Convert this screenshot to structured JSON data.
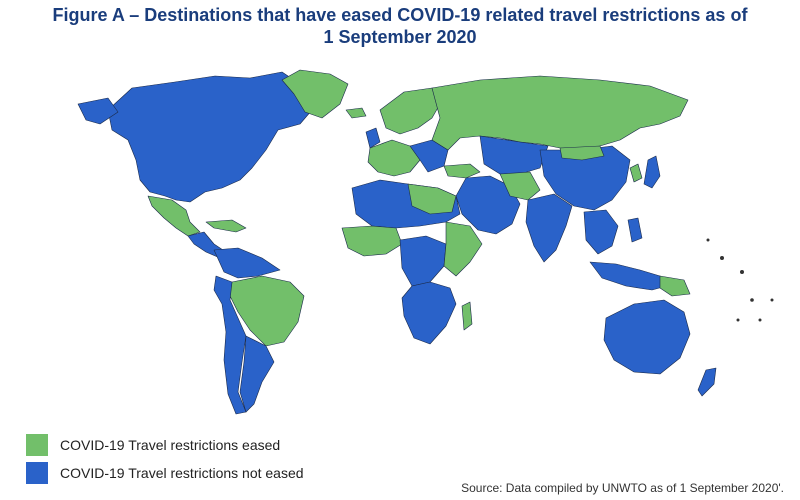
{
  "title": {
    "line1": "Figure A – Destinations that have eased COVID-19 related travel restrictions as of",
    "line2": "1 September 2020"
  },
  "legend": [
    {
      "label": "COVID-19 Travel restrictions eased",
      "color": "#72bf6a"
    },
    {
      "label": "COVID-19 Travel restrictions not eased",
      "color": "#2a62c9"
    }
  ],
  "source": "Source: Data compiled by UNWTO as of 1 September 2020'.",
  "colors": {
    "eased": "#72bf6a",
    "not_eased": "#2a62c9",
    "title": "#1a3d7c",
    "border": "#1a2a4a"
  }
}
